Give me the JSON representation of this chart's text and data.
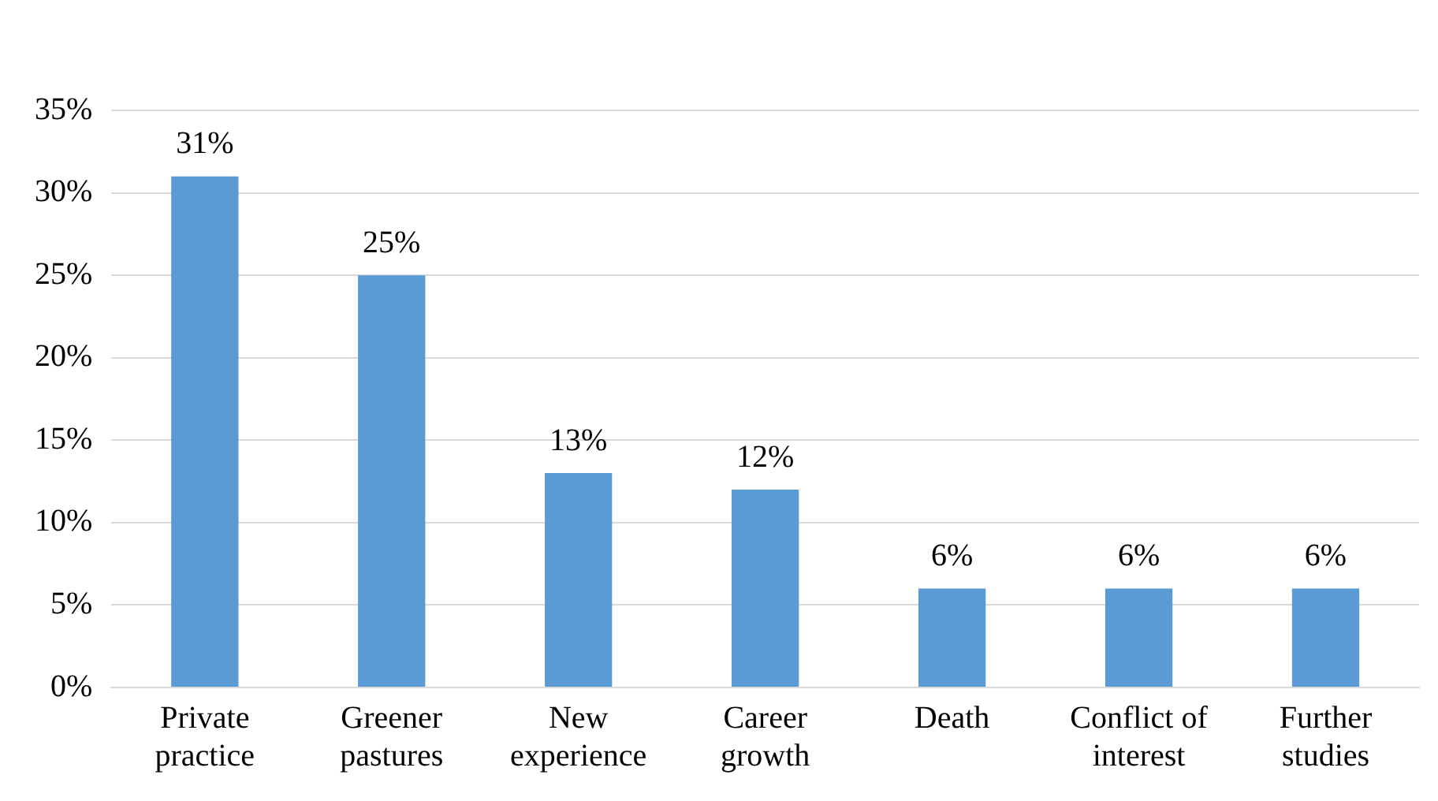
{
  "chart_data": {
    "type": "bar",
    "categories": [
      "Private practice",
      "Greener pastures",
      "New experience",
      "Career growth",
      "Death",
      "Conflict of interest",
      "Further studies"
    ],
    "values": [
      31,
      25,
      13,
      12,
      6,
      6,
      6
    ],
    "value_labels": [
      "31%",
      "25%",
      "13%",
      "12%",
      "6%",
      "6%",
      "6%"
    ],
    "color": "#5b9bd5",
    "ylim": [
      0,
      35
    ],
    "yticks": [
      {
        "value": 0,
        "label": "0%"
      },
      {
        "value": 5,
        "label": "5%"
      },
      {
        "value": 10,
        "label": "10%"
      },
      {
        "value": 15,
        "label": "15%"
      },
      {
        "value": 20,
        "label": "20%"
      },
      {
        "value": 25,
        "label": "25%"
      },
      {
        "value": 30,
        "label": "30%"
      },
      {
        "value": 35,
        "label": "35%"
      }
    ],
    "grid": "y",
    "legend": false
  }
}
